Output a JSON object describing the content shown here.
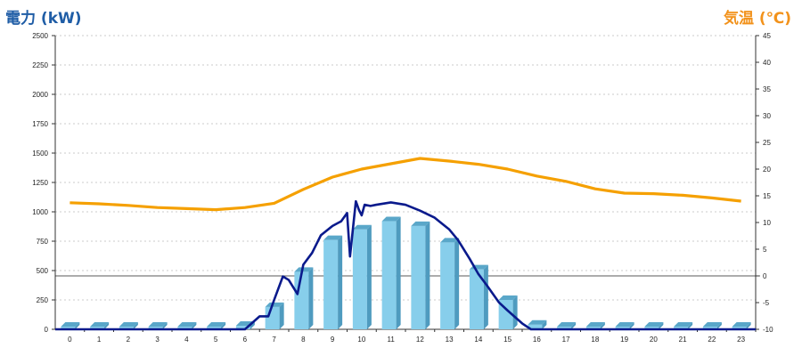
{
  "chart_data": {
    "type": "bar+line",
    "left_axis_title": "電力 (kW)",
    "right_axis_title": "気温 (℃)",
    "x_categories": [
      "0",
      "1",
      "2",
      "3",
      "4",
      "5",
      "6",
      "7",
      "8",
      "9",
      "10",
      "11",
      "12",
      "13",
      "14",
      "15",
      "16",
      "17",
      "18",
      "19",
      "20",
      "21",
      "22",
      "23"
    ],
    "left_ylim": [
      0,
      2500
    ],
    "left_yticks": [
      0,
      250,
      500,
      750,
      1000,
      1250,
      1500,
      1750,
      2000,
      2250,
      2500
    ],
    "right_ylim": [
      -10,
      45
    ],
    "right_yticks": [
      -10,
      -5,
      0,
      5,
      10,
      15,
      20,
      25,
      30,
      35,
      40,
      45
    ],
    "grid": "horizontal dotted",
    "series": [
      {
        "kind": "bar",
        "axis": "left",
        "color": "#87ceeb",
        "values": [
          0,
          0,
          0,
          0,
          0,
          0,
          30,
          190,
          490,
          760,
          850,
          920,
          880,
          740,
          510,
          250,
          40,
          0,
          0,
          0,
          0,
          0,
          0,
          0
        ]
      },
      {
        "kind": "line",
        "axis": "left",
        "color": "#0a1a8c",
        "points": [
          [
            0,
            0
          ],
          [
            6.0,
            0
          ],
          [
            6.5,
            110
          ],
          [
            6.8,
            110
          ],
          [
            7.0,
            250
          ],
          [
            7.3,
            450
          ],
          [
            7.5,
            420
          ],
          [
            7.8,
            300
          ],
          [
            8.0,
            550
          ],
          [
            8.3,
            650
          ],
          [
            8.6,
            800
          ],
          [
            9.0,
            880
          ],
          [
            9.3,
            920
          ],
          [
            9.5,
            990
          ],
          [
            9.6,
            620
          ],
          [
            9.8,
            1090
          ],
          [
            9.9,
            1020
          ],
          [
            10.0,
            970
          ],
          [
            10.1,
            1060
          ],
          [
            10.3,
            1050
          ],
          [
            10.5,
            1060
          ],
          [
            11.0,
            1080
          ],
          [
            11.5,
            1060
          ],
          [
            12.0,
            1010
          ],
          [
            12.5,
            950
          ],
          [
            13.0,
            850
          ],
          [
            13.3,
            760
          ],
          [
            13.7,
            600
          ],
          [
            14.0,
            470
          ],
          [
            14.3,
            370
          ],
          [
            14.7,
            230
          ],
          [
            15.0,
            160
          ],
          [
            15.5,
            50
          ],
          [
            15.8,
            0
          ],
          [
            23.0,
            0
          ]
        ]
      },
      {
        "kind": "line",
        "axis": "right",
        "color": "#f5a000",
        "values": [
          13.7,
          13.5,
          13.2,
          12.8,
          12.6,
          12.4,
          12.8,
          13.6,
          16.2,
          18.5,
          20.0,
          21.0,
          22.0,
          21.5,
          20.9,
          20.0,
          18.7,
          17.7,
          16.3,
          15.5,
          15.4,
          15.1,
          14.6,
          14.0
        ]
      }
    ]
  }
}
